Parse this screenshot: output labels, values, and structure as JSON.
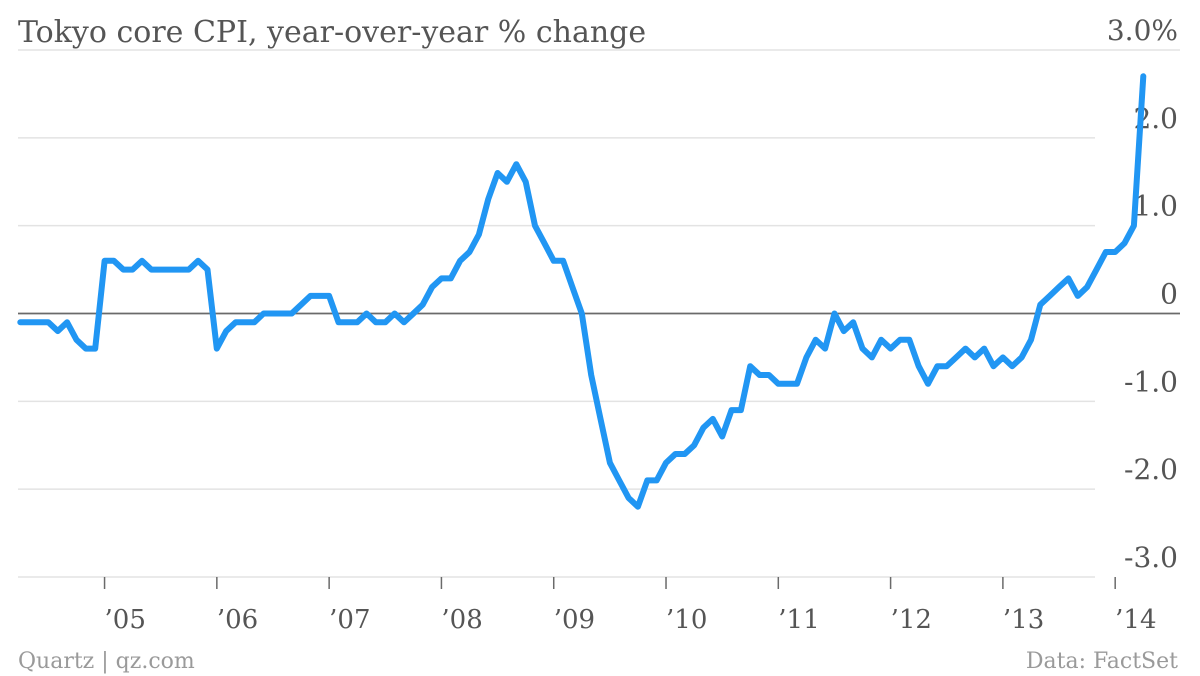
{
  "chart_data": {
    "type": "line",
    "title": "Tokyo core CPI, year-over-year % change",
    "ylim": [
      -3.0,
      3.0
    ],
    "yticks": [
      {
        "value": 3.0,
        "label": "3.0%"
      },
      {
        "value": 2.0,
        "label": "2.0"
      },
      {
        "value": 1.0,
        "label": "1.0"
      },
      {
        "value": 0.0,
        "label": "0"
      },
      {
        "value": -1.0,
        "label": "-1.0"
      },
      {
        "value": -2.0,
        "label": "-2.0"
      },
      {
        "value": -3.0,
        "label": "-3.0"
      }
    ],
    "xlim": [
      "2004-04",
      "2014-05"
    ],
    "xticks": [
      {
        "value": "2005-01",
        "label": "’05"
      },
      {
        "value": "2006-01",
        "label": "’06"
      },
      {
        "value": "2007-01",
        "label": "’07"
      },
      {
        "value": "2008-01",
        "label": "’08"
      },
      {
        "value": "2009-01",
        "label": "’09"
      },
      {
        "value": "2010-01",
        "label": "’10"
      },
      {
        "value": "2011-01",
        "label": "’11"
      },
      {
        "value": "2012-01",
        "label": "’12"
      },
      {
        "value": "2013-01",
        "label": "’13"
      },
      {
        "value": "2014-01",
        "label": "’14"
      }
    ],
    "grid": true,
    "series_color": "#2196f3",
    "series": [
      {
        "x": [
          "2004-04",
          "2004-05",
          "2004-06",
          "2004-07",
          "2004-08",
          "2004-09",
          "2004-10",
          "2004-11",
          "2004-12",
          "2005-01",
          "2005-02",
          "2005-03",
          "2005-04",
          "2005-05",
          "2005-06",
          "2005-07",
          "2005-08",
          "2005-09",
          "2005-10",
          "2005-11",
          "2005-12",
          "2006-01",
          "2006-02",
          "2006-03",
          "2006-04",
          "2006-05",
          "2006-06",
          "2006-07",
          "2006-08",
          "2006-09",
          "2006-10",
          "2006-11",
          "2006-12",
          "2007-01",
          "2007-02",
          "2007-03",
          "2007-04",
          "2007-05",
          "2007-06",
          "2007-07",
          "2007-08",
          "2007-09",
          "2007-10",
          "2007-11",
          "2007-12",
          "2008-01",
          "2008-02",
          "2008-03",
          "2008-04",
          "2008-05",
          "2008-06",
          "2008-07",
          "2008-08",
          "2008-09",
          "2008-10",
          "2008-11",
          "2008-12",
          "2009-01",
          "2009-02",
          "2009-03",
          "2009-04",
          "2009-05",
          "2009-06",
          "2009-07",
          "2009-08",
          "2009-09",
          "2009-10",
          "2009-11",
          "2009-12",
          "2010-01",
          "2010-02",
          "2010-03",
          "2010-04",
          "2010-05",
          "2010-06",
          "2010-07",
          "2010-08",
          "2010-09",
          "2010-10",
          "2010-11",
          "2010-12",
          "2011-01",
          "2011-02",
          "2011-03",
          "2011-04",
          "2011-05",
          "2011-06",
          "2011-07",
          "2011-08",
          "2011-09",
          "2011-10",
          "2011-11",
          "2011-12",
          "2012-01",
          "2012-02",
          "2012-03",
          "2012-04",
          "2012-05",
          "2012-06",
          "2012-07",
          "2012-08",
          "2012-09",
          "2012-10",
          "2012-11",
          "2012-12",
          "2013-01",
          "2013-02",
          "2013-03",
          "2013-04",
          "2013-05",
          "2013-06",
          "2013-07",
          "2013-08",
          "2013-09",
          "2013-10",
          "2013-11",
          "2013-12",
          "2014-01",
          "2014-02",
          "2014-03",
          "2014-04"
        ],
        "values": [
          -0.1,
          -0.1,
          -0.1,
          -0.1,
          -0.2,
          -0.1,
          -0.3,
          -0.4,
          -0.4,
          0.6,
          0.6,
          0.5,
          0.5,
          0.6,
          0.5,
          0.5,
          0.5,
          0.5,
          0.5,
          0.6,
          0.5,
          -0.4,
          -0.2,
          -0.1,
          -0.1,
          -0.1,
          0.0,
          0.0,
          0.0,
          0.0,
          0.1,
          0.2,
          0.2,
          0.2,
          -0.1,
          -0.1,
          -0.1,
          0.0,
          -0.1,
          -0.1,
          0.0,
          -0.1,
          0.0,
          0.1,
          0.3,
          0.4,
          0.4,
          0.6,
          0.7,
          0.9,
          1.3,
          1.6,
          1.5,
          1.7,
          1.5,
          1.0,
          0.8,
          0.6,
          0.6,
          0.3,
          0.0,
          -0.7,
          -1.2,
          -1.7,
          -1.9,
          -2.1,
          -2.2,
          -1.9,
          -1.9,
          -1.7,
          -1.6,
          -1.6,
          -1.5,
          -1.3,
          -1.2,
          -1.4,
          -1.1,
          -1.1,
          -0.6,
          -0.7,
          -0.7,
          -0.8,
          -0.8,
          -0.8,
          -0.5,
          -0.3,
          -0.4,
          0.0,
          -0.2,
          -0.1,
          -0.4,
          -0.5,
          -0.3,
          -0.4,
          -0.3,
          -0.3,
          -0.6,
          -0.8,
          -0.6,
          -0.6,
          -0.5,
          -0.4,
          -0.5,
          -0.4,
          -0.6,
          -0.5,
          -0.6,
          -0.5,
          -0.3,
          0.1,
          0.2,
          0.3,
          0.4,
          0.2,
          0.3,
          0.5,
          0.7,
          0.7,
          0.8,
          1.0,
          2.7
        ]
      }
    ],
    "footer_left": "Quartz | qz.com",
    "footer_right": "Data: FactSet"
  }
}
